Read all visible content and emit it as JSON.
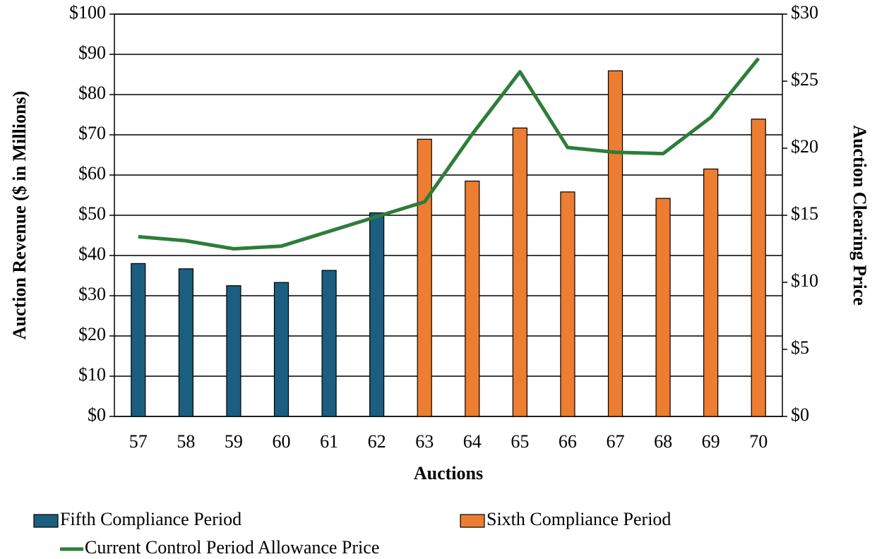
{
  "chart_data": {
    "type": "bar",
    "categories": [
      "57",
      "58",
      "59",
      "60",
      "61",
      "62",
      "63",
      "64",
      "65",
      "66",
      "67",
      "68",
      "69",
      "70"
    ],
    "series": [
      {
        "name": "Fifth Compliance Period",
        "color": "#1b5e80",
        "type": "bar",
        "values": [
          38,
          36.7,
          32.5,
          33.3,
          36.3,
          50.6,
          null,
          null,
          null,
          null,
          null,
          null,
          null,
          null
        ]
      },
      {
        "name": "Sixth Compliance Period",
        "color": "#ed7d31",
        "type": "bar",
        "values": [
          null,
          null,
          null,
          null,
          null,
          null,
          68.9,
          58.5,
          71.7,
          55.8,
          85.9,
          54.2,
          61.5,
          73.9
        ]
      },
      {
        "name": "Current Control Period Allowance Price",
        "color": "#2e7d3a",
        "type": "line",
        "axis": "y2",
        "values": [
          13.4,
          13.1,
          12.5,
          12.7,
          13.8,
          14.9,
          16.0,
          21.05,
          25.7,
          20.05,
          19.7,
          19.6,
          22.3,
          26.7
        ]
      }
    ],
    "x_label": "Auctions",
    "y_label": "Auction Revenue ($ in Millions)",
    "y2_label": "Auction Clearing Price",
    "ylim": [
      0,
      100
    ],
    "yticks": [
      {
        "value": 0,
        "label": "$0"
      },
      {
        "value": 10,
        "label": "$10"
      },
      {
        "value": 20,
        "label": "$20"
      },
      {
        "value": 30,
        "label": "$30"
      },
      {
        "value": 40,
        "label": "$40"
      },
      {
        "value": 50,
        "label": "$50"
      },
      {
        "value": 60,
        "label": "$60"
      },
      {
        "value": 70,
        "label": "$70"
      },
      {
        "value": 80,
        "label": "$80"
      },
      {
        "value": 90,
        "label": "$90"
      },
      {
        "value": 100,
        "label": "$100"
      }
    ],
    "y2lim": [
      0,
      30
    ],
    "y2ticks": [
      {
        "value": 0,
        "label": "$0"
      },
      {
        "value": 5,
        "label": "$5"
      },
      {
        "value": 10,
        "label": "$10"
      },
      {
        "value": 15,
        "label": "$15"
      },
      {
        "value": 20,
        "label": "$20"
      },
      {
        "value": 25,
        "label": "$25"
      },
      {
        "value": 30,
        "label": "$30"
      }
    ],
    "grid": true,
    "legend": "bottom"
  }
}
